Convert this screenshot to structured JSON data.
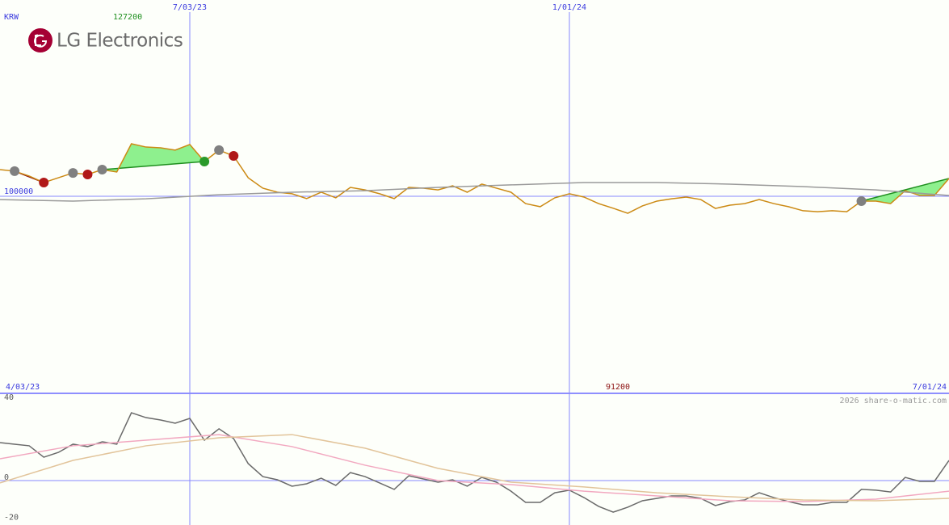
{
  "logo_text": "LG Electronics",
  "watermark": "2026 share-o-matic.com",
  "chart_data": [
    {
      "type": "line",
      "unit": "KRW",
      "high": 127200,
      "low": 91200,
      "x": [
        "4/03/23",
        "4/10/23",
        "4/17/23",
        "4/24/23",
        "5/01/23",
        "5/08/23",
        "5/15/23",
        "5/22/23",
        "5/29/23",
        "6/05/23",
        "6/12/23",
        "6/19/23",
        "6/26/23",
        "7/03/23",
        "7/10/23",
        "7/17/23",
        "7/24/23",
        "7/31/23",
        "8/07/23",
        "8/14/23",
        "8/21/23",
        "8/28/23",
        "9/04/23",
        "9/11/23",
        "9/18/23",
        "9/25/23",
        "10/02/23",
        "10/09/23",
        "10/16/23",
        "10/23/23",
        "10/30/23",
        "11/06/23",
        "11/13/23",
        "11/20/23",
        "11/27/23",
        "12/04/23",
        "12/11/23",
        "12/18/23",
        "12/25/23",
        "1/01/24",
        "1/08/24",
        "1/15/24",
        "1/22/24",
        "1/29/24",
        "2/05/24",
        "2/12/24",
        "2/19/24",
        "2/26/24",
        "3/04/24",
        "3/11/24",
        "3/18/24",
        "3/25/24",
        "4/01/24",
        "4/08/24",
        "4/15/24",
        "4/22/24",
        "4/29/24",
        "5/06/24",
        "5/13/24",
        "5/20/24",
        "5/27/24",
        "6/03/24",
        "6/10/24",
        "6/17/24",
        "6/24/24",
        "7/01/24"
      ],
      "xlim": [
        "4/03/23",
        "7/01/24"
      ],
      "xticks": [
        "7/03/23",
        "1/01/24"
      ],
      "ylim": [
        0,
        200000
      ],
      "yticks": [
        100000
      ],
      "grid": true,
      "series": [
        {
          "color": "#cc8a14",
          "values": [
            113800,
            113000,
            110500,
            107100,
            109600,
            112100,
            111300,
            113800,
            112600,
            127200,
            125500,
            125100,
            123900,
            126800,
            118000,
            123900,
            120900,
            109600,
            104200,
            102100,
            101300,
            98800,
            102100,
            99200,
            104600,
            103300,
            101300,
            98800,
            104600,
            104200,
            103300,
            105400,
            102100,
            106300,
            104200,
            102100,
            96200,
            94600,
            99200,
            101300,
            99600,
            96200,
            93800,
            91200,
            95000,
            97500,
            98700,
            99600,
            98300,
            93700,
            95400,
            96200,
            98300,
            96200,
            94600,
            92500,
            92000,
            92500,
            92000,
            97500,
            97500,
            96200,
            102900,
            100400,
            100400,
            109200
          ]
        },
        {
          "color": "#9a9a9a",
          "x": [
            "4/03/23",
            "5/08/23",
            "6/12/23",
            "7/17/23",
            "8/21/23",
            "9/25/23",
            "10/30/23",
            "12/04/23",
            "1/08/24",
            "2/12/24",
            "3/18/24",
            "4/22/24",
            "5/27/24",
            "7/01/24"
          ],
          "values": [
            98300,
            97500,
            98700,
            100800,
            102100,
            102900,
            104600,
            105900,
            107100,
            107100,
            106300,
            105000,
            103300,
            100400
          ]
        }
      ],
      "bands": [
        {
          "from": "4/10/23",
          "to": "4/24/23",
          "color": "#f8b4c4",
          "line": "#8b1010"
        },
        {
          "from": "5/22/23",
          "to": "7/10/23",
          "color": "#8ef08e",
          "line": "#1f8f1f"
        },
        {
          "from": "7/17/23",
          "to": "7/24/23",
          "color": "#f8b4c4"
        },
        {
          "from": "5/20/24",
          "to": "7/01/24",
          "color": "#8ef08e",
          "line": "#1f8f1f"
        }
      ],
      "markers": {
        "x": [
          "4/10/23",
          "4/24/23",
          "5/08/23",
          "5/15/23",
          "5/22/23",
          "7/10/23",
          "7/17/23",
          "7/24/23",
          "5/20/24"
        ],
        "values": [
          113000,
          107100,
          112100,
          111300,
          113800,
          118000,
          123900,
          120900,
          97500
        ],
        "colors": [
          "#808080",
          "#b01818",
          "#808080",
          "#b01818",
          "#808080",
          "#2a9a2a",
          "#808080",
          "#b01818",
          "#808080"
        ]
      }
    },
    {
      "type": "line",
      "ylim": [
        -20,
        40
      ],
      "yticks": [
        40,
        0,
        -20
      ],
      "series": [
        {
          "color": "#6a6a6a",
          "values": [
            19,
            18.2,
            17.4,
            11.7,
            14.1,
            18.2,
            17,
            19.4,
            18.2,
            33.9,
            31.5,
            30.3,
            28.7,
            31.1,
            20.2,
            25.9,
            21,
            8.5,
            2,
            0.4,
            -2.8,
            -1.6,
            1.2,
            -2.4,
            4,
            2,
            -1.2,
            -4.4,
            2.4,
            0.8,
            -0.8,
            0.4,
            -2.8,
            1.6,
            -0.8,
            -5.3,
            -10.9,
            -10.9,
            -6.1,
            -4.8,
            -8.5,
            -12.9,
            -15.8,
            -13.3,
            -10.1,
            -8.9,
            -7.7,
            -7.7,
            -8.9,
            -12.5,
            -10.5,
            -9.7,
            -6.1,
            -8.5,
            -10.5,
            -12.1,
            -12.1,
            -10.9,
            -10.9,
            -4.4,
            -4.8,
            -5.7,
            1.6,
            -0.4,
            -0.4,
            10.1
          ]
        },
        {
          "color": "#f2a8c0",
          "x": [
            "4/03/23",
            "5/08/23",
            "6/12/23",
            "7/17/23",
            "8/21/23",
            "9/25/23",
            "10/30/23",
            "12/04/23",
            "1/08/24",
            "2/12/24",
            "3/18/24",
            "4/22/24",
            "5/27/24",
            "7/01/24"
          ],
          "values": [
            10.9,
            17.4,
            20.2,
            23,
            17,
            7.7,
            0,
            -2,
            -5.3,
            -7.7,
            -10.1,
            -10.5,
            -9.3,
            -5.3
          ]
        },
        {
          "color": "#e2c49a",
          "x": [
            "4/03/23",
            "5/08/23",
            "6/12/23",
            "7/17/23",
            "8/21/23",
            "9/25/23",
            "10/30/23",
            "12/04/23",
            "1/08/24",
            "2/12/24",
            "3/18/24",
            "4/22/24",
            "5/27/24",
            "7/01/24"
          ],
          "values": [
            -1.2,
            10.1,
            17.4,
            21.4,
            23,
            16.2,
            6.1,
            -0.8,
            -3.2,
            -6.1,
            -8.1,
            -9.7,
            -10.1,
            -8.9
          ]
        }
      ]
    }
  ]
}
